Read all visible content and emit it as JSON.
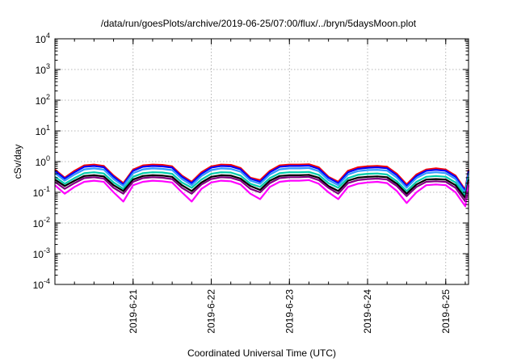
{
  "chart_data": {
    "type": "line",
    "title": "/data/run/goesPlots/archive/2019-06-25/07:00/flux/../bryn/5daysMoon.plot",
    "xlabel": "Coordinated Universal Time (UTC)",
    "ylabel": "cSv/day",
    "yscale": "log",
    "ylim": [
      0.0001,
      10000
    ],
    "xlim": [
      "2019-06-20 00:00",
      "2019-06-25 07:00"
    ],
    "grid": true,
    "y_ticks": [
      {
        "base": "10",
        "exp": "-4"
      },
      {
        "base": "10",
        "exp": "-3"
      },
      {
        "base": "10",
        "exp": "-2"
      },
      {
        "base": "10",
        "exp": "-1"
      },
      {
        "base": "10",
        "exp": "0"
      },
      {
        "base": "10",
        "exp": "1"
      },
      {
        "base": "10",
        "exp": "2"
      },
      {
        "base": "10",
        "exp": "3"
      },
      {
        "base": "10",
        "exp": "4"
      }
    ],
    "x_ticks": [
      "2019-6-21",
      "2019-6-22",
      "2019-6-23",
      "2019-6-24",
      "2019-6-25"
    ],
    "x": [
      "2019-06-20 00:00",
      "2019-06-20 03:00",
      "2019-06-20 06:00",
      "2019-06-20 09:00",
      "2019-06-20 12:00",
      "2019-06-20 15:00",
      "2019-06-20 18:00",
      "2019-06-20 21:00",
      "2019-06-21 00:00",
      "2019-06-21 03:00",
      "2019-06-21 06:00",
      "2019-06-21 09:00",
      "2019-06-21 12:00",
      "2019-06-21 15:00",
      "2019-06-21 18:00",
      "2019-06-21 21:00",
      "2019-06-22 00:00",
      "2019-06-22 03:00",
      "2019-06-22 06:00",
      "2019-06-22 09:00",
      "2019-06-22 12:00",
      "2019-06-22 15:00",
      "2019-06-22 18:00",
      "2019-06-22 21:00",
      "2019-06-23 00:00",
      "2019-06-23 03:00",
      "2019-06-23 06:00",
      "2019-06-23 09:00",
      "2019-06-23 12:00",
      "2019-06-23 15:00",
      "2019-06-23 18:00",
      "2019-06-23 21:00",
      "2019-06-24 00:00",
      "2019-06-24 03:00",
      "2019-06-24 06:00",
      "2019-06-24 09:00",
      "2019-06-24 12:00",
      "2019-06-24 15:00",
      "2019-06-24 18:00",
      "2019-06-24 21:00",
      "2019-06-25 00:00",
      "2019-06-25 03:00",
      "2019-06-25 06:00",
      "2019-06-25 07:00"
    ],
    "series": [
      {
        "color": "#ff0000",
        "values": [
          0.55,
          0.3,
          0.5,
          0.75,
          0.8,
          0.72,
          0.35,
          0.2,
          0.55,
          0.75,
          0.8,
          0.78,
          0.7,
          0.35,
          0.22,
          0.45,
          0.7,
          0.8,
          0.78,
          0.62,
          0.3,
          0.25,
          0.5,
          0.75,
          0.8,
          0.8,
          0.82,
          0.65,
          0.32,
          0.22,
          0.5,
          0.65,
          0.7,
          0.72,
          0.68,
          0.4,
          0.18,
          0.38,
          0.55,
          0.6,
          0.55,
          0.35,
          0.12,
          0.55
        ]
      },
      {
        "color": "#0000ff",
        "values": [
          0.5,
          0.28,
          0.45,
          0.68,
          0.72,
          0.66,
          0.32,
          0.18,
          0.5,
          0.68,
          0.72,
          0.7,
          0.64,
          0.32,
          0.2,
          0.4,
          0.64,
          0.72,
          0.7,
          0.56,
          0.28,
          0.22,
          0.45,
          0.68,
          0.72,
          0.72,
          0.74,
          0.58,
          0.3,
          0.2,
          0.45,
          0.58,
          0.63,
          0.65,
          0.61,
          0.36,
          0.16,
          0.34,
          0.5,
          0.54,
          0.5,
          0.32,
          0.11,
          0.5
        ]
      },
      {
        "color": "#3399ff",
        "values": [
          0.42,
          0.24,
          0.38,
          0.56,
          0.6,
          0.55,
          0.27,
          0.16,
          0.42,
          0.56,
          0.6,
          0.58,
          0.53,
          0.27,
          0.17,
          0.34,
          0.53,
          0.6,
          0.58,
          0.47,
          0.24,
          0.19,
          0.38,
          0.56,
          0.6,
          0.6,
          0.62,
          0.49,
          0.25,
          0.17,
          0.38,
          0.49,
          0.53,
          0.54,
          0.51,
          0.3,
          0.14,
          0.29,
          0.42,
          0.45,
          0.42,
          0.27,
          0.095,
          0.42
        ]
      },
      {
        "color": "#00ccaa",
        "values": [
          0.32,
          0.19,
          0.29,
          0.42,
          0.45,
          0.41,
          0.21,
          0.13,
          0.32,
          0.42,
          0.45,
          0.44,
          0.4,
          0.21,
          0.14,
          0.26,
          0.4,
          0.45,
          0.44,
          0.35,
          0.19,
          0.15,
          0.29,
          0.42,
          0.45,
          0.45,
          0.46,
          0.37,
          0.2,
          0.14,
          0.29,
          0.37,
          0.4,
          0.41,
          0.38,
          0.23,
          0.11,
          0.22,
          0.32,
          0.34,
          0.32,
          0.21,
          0.08,
          0.32
        ]
      },
      {
        "color": "#000000",
        "values": [
          0.26,
          0.16,
          0.24,
          0.34,
          0.36,
          0.33,
          0.17,
          0.11,
          0.26,
          0.34,
          0.36,
          0.35,
          0.32,
          0.17,
          0.11,
          0.21,
          0.32,
          0.36,
          0.35,
          0.28,
          0.16,
          0.12,
          0.24,
          0.34,
          0.36,
          0.36,
          0.37,
          0.3,
          0.16,
          0.11,
          0.24,
          0.3,
          0.32,
          0.33,
          0.31,
          0.19,
          0.09,
          0.18,
          0.26,
          0.27,
          0.26,
          0.17,
          0.065,
          0.26
        ]
      },
      {
        "color": "#800080",
        "values": [
          0.22,
          0.13,
          0.2,
          0.29,
          0.31,
          0.28,
          0.14,
          0.09,
          0.22,
          0.29,
          0.31,
          0.3,
          0.27,
          0.14,
          0.09,
          0.18,
          0.27,
          0.31,
          0.3,
          0.24,
          0.13,
          0.1,
          0.2,
          0.29,
          0.31,
          0.31,
          0.32,
          0.25,
          0.14,
          0.09,
          0.2,
          0.25,
          0.27,
          0.28,
          0.26,
          0.16,
          0.075,
          0.15,
          0.22,
          0.23,
          0.22,
          0.14,
          0.05,
          0.22
        ]
      },
      {
        "color": "#ff00ff",
        "values": [
          0.17,
          0.09,
          0.15,
          0.22,
          0.24,
          0.22,
          0.1,
          0.05,
          0.17,
          0.22,
          0.24,
          0.23,
          0.21,
          0.1,
          0.05,
          0.13,
          0.21,
          0.24,
          0.23,
          0.18,
          0.09,
          0.06,
          0.15,
          0.22,
          0.24,
          0.24,
          0.25,
          0.19,
          0.1,
          0.06,
          0.15,
          0.19,
          0.21,
          0.22,
          0.2,
          0.11,
          0.045,
          0.1,
          0.17,
          0.18,
          0.17,
          0.1,
          0.035,
          0.17
        ]
      }
    ]
  }
}
